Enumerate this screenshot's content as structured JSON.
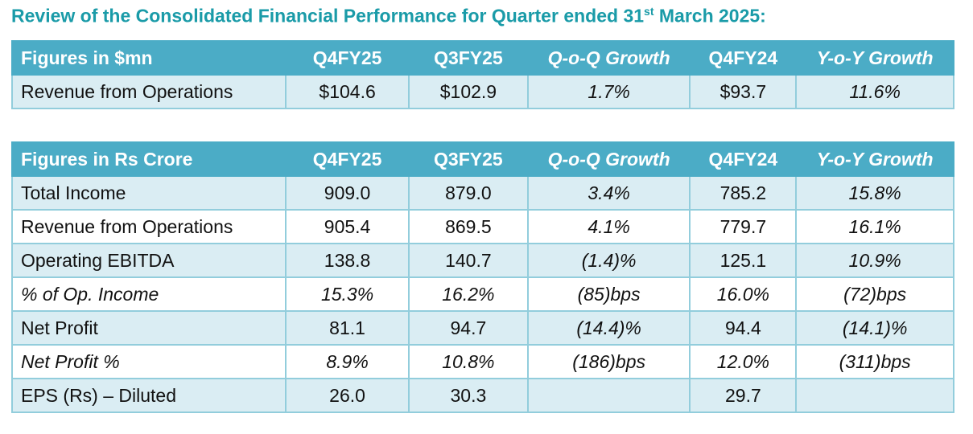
{
  "title": {
    "text": "Review of the Consolidated Financial Performance for Quarter ended 31",
    "sup": "st",
    "rest": " March 2025:"
  },
  "colors": {
    "title": "#1a9ba8",
    "header_bg": "#4bacc6",
    "row_light": "#daedf3",
    "border": "#92cddc"
  },
  "table1": {
    "headers": [
      "Figures in $mn",
      "Q4FY25",
      "Q3FY25",
      "Q-o-Q Growth",
      "Q4FY24",
      "Y-o-Y Growth"
    ],
    "rows": [
      [
        "Revenue from Operations",
        "$104.6",
        "$102.9",
        "1.7%",
        "$93.7",
        "11.6%"
      ]
    ]
  },
  "table2": {
    "headers": [
      "Figures in Rs Crore",
      "Q4FY25",
      "Q3FY25",
      "Q-o-Q Growth",
      "Q4FY24",
      "Y-o-Y Growth"
    ],
    "rows": [
      [
        "Total Income",
        "909.0",
        "879.0",
        "3.4%",
        "785.2",
        "15.8%"
      ],
      [
        "Revenue from Operations",
        "905.4",
        "869.5",
        "4.1%",
        "779.7",
        "16.1%"
      ],
      [
        "Operating EBITDA",
        "138.8",
        "140.7",
        "(1.4)%",
        "125.1",
        "10.9%"
      ],
      [
        "% of Op. Income",
        "15.3%",
        "16.2%",
        "(85)bps",
        "16.0%",
        "(72)bps"
      ],
      [
        "Net Profit",
        "81.1",
        "94.7",
        "(14.4)%",
        "94.4",
        "(14.1)%"
      ],
      [
        "Net Profit %",
        "8.9%",
        "10.8%",
        "(186)bps",
        "12.0%",
        "(311)bps"
      ],
      [
        "EPS (Rs) – Diluted",
        "26.0",
        "30.3",
        "",
        "29.7",
        ""
      ]
    ]
  }
}
